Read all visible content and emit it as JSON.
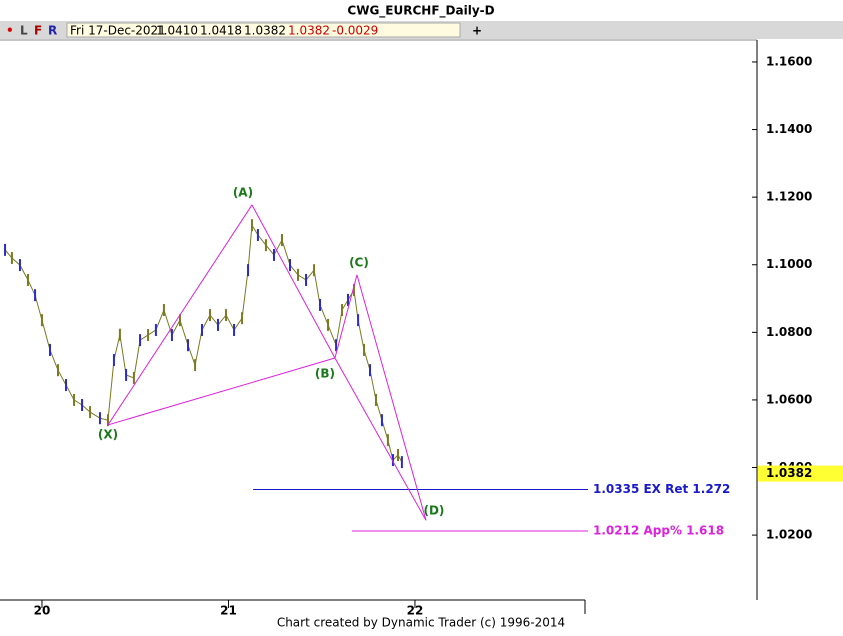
{
  "chart_data": {
    "type": "line",
    "title": "CWG_EURCHF_Daily-D",
    "menu": [
      "•",
      "L",
      "F",
      "R"
    ],
    "quote": [
      "Fri 17-Dec-2021",
      "1.0410",
      "1.0418",
      "1.0382",
      "1.0382",
      "-0.0029"
    ],
    "footer": "Chart created by Dynamic Trader  (c) 1996-2014",
    "x": [
      2019.802,
      2019.839,
      2019.882,
      2019.925,
      2019.963,
      2020.0,
      2020.043,
      2020.086,
      2020.129,
      2020.172,
      2020.215,
      2020.258,
      2020.311,
      2020.354,
      2020.386,
      2020.418,
      2020.451,
      2020.493,
      2020.526,
      2020.569,
      2020.611,
      2020.654,
      2020.697,
      2020.74,
      2020.783,
      2020.821,
      2020.858,
      2020.901,
      2020.944,
      2020.987,
      2021.03,
      2021.073,
      2021.105,
      2021.126,
      2021.158,
      2021.201,
      2021.244,
      2021.287,
      2021.33,
      2021.373,
      2021.416,
      2021.459,
      2021.491,
      2021.534,
      2021.577,
      2021.609,
      2021.641,
      2021.673,
      2021.695,
      2021.727,
      2021.759,
      2021.791,
      2021.823,
      2021.855,
      2021.882,
      2021.909,
      2021.93
    ],
    "series": [
      {
        "color": "#2a2ad0",
        "values": [
          1.1044,
          1.102,
          1.0999,
          1.0955,
          1.091,
          1.0836,
          1.0748,
          1.0688,
          1.0644,
          1.06,
          1.0585,
          1.0564,
          1.0546,
          1.054,
          1.0718,
          1.0793,
          1.0674,
          1.0665,
          1.0777,
          1.0792,
          1.0807,
          1.0866,
          1.0792,
          1.0836,
          1.0762,
          1.0703,
          1.0807,
          1.0851,
          1.0822,
          1.0851,
          1.0807,
          1.0842,
          1.0984,
          1.1117,
          1.1088,
          1.1058,
          1.1029,
          1.1073,
          1.0999,
          1.097,
          1.0955,
          1.0984,
          1.0881,
          1.0822,
          1.0762,
          1.0866,
          1.0896,
          1.0925,
          1.0836,
          1.0748,
          1.0688,
          1.06,
          1.054,
          1.0481,
          1.0422,
          1.0437,
          1.0416
        ]
      }
    ],
    "xlim": [
      2019.775,
      2023.834
    ],
    "xticks": [
      {
        "value": 2020,
        "label": "20"
      },
      {
        "value": 2021,
        "label": "21"
      },
      {
        "value": 2022,
        "label": "22"
      }
    ],
    "ylim": [
      1.0008,
      1.1665
    ],
    "yticks": [
      {
        "value": 1.02,
        "label": "1.0200"
      },
      {
        "value": 1.04,
        "label": "1.0400"
      },
      {
        "value": 1.06,
        "label": "1.0600"
      },
      {
        "value": 1.08,
        "label": "1.0800"
      },
      {
        "value": 1.1,
        "label": "1.1000"
      },
      {
        "value": 1.12,
        "label": "1.1200"
      },
      {
        "value": 1.14,
        "label": "1.1400"
      },
      {
        "value": 1.16,
        "label": "1.1600"
      }
    ],
    "pattern": {
      "color": "#dd22dd",
      "label_color": "#1a7a1a",
      "points": [
        {
          "label": "(X)",
          "x": 2020.354,
          "y": 1.0526
        },
        {
          "label": "(A)",
          "x": 2021.126,
          "y": 1.1177
        },
        {
          "label": "(B)",
          "x": 2021.571,
          "y": 1.0724
        },
        {
          "label": "(C)",
          "x": 2021.689,
          "y": 1.097
        },
        {
          "label": "(D)",
          "x": 2022.059,
          "y": 1.0244
        }
      ]
    },
    "levels": [
      {
        "value": 1.0335,
        "label": "1.0335 EX Ret 1.272",
        "color": "#1a1acc",
        "x_start": 2021.132
      },
      {
        "value": 1.0212,
        "label": "1.0212 App% 1.618",
        "color": "#dd22dd",
        "x_start": 2021.662
      }
    ],
    "last_price": {
      "value": 1.0382,
      "label": "1.0382",
      "color": "#ffff33"
    }
  }
}
